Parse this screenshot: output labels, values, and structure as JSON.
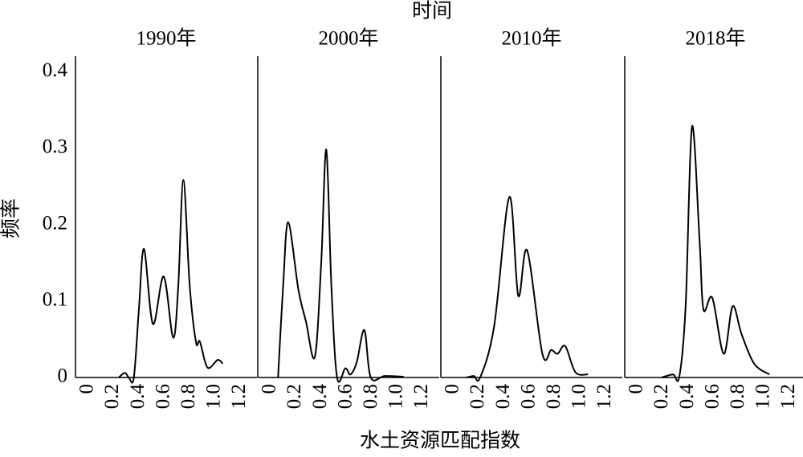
{
  "chart_data": {
    "type": "line",
    "facet_label": "时间",
    "ylabel": "频率",
    "xlabel": "水土资源匹配指数",
    "color": "#000000",
    "xlim": [
      -0.1,
      1.33
    ],
    "xticks": [
      0,
      0.2,
      0.4,
      0.6,
      0.8,
      {
        "value": 1,
        "label": "1.0"
      },
      1.2
    ],
    "ylim": [
      0,
      0.42
    ],
    "yticks": [
      0,
      0.1,
      0.2,
      0.3,
      0.4
    ],
    "panels": [
      {
        "title": "1990年",
        "x": [
          0.24,
          0.29,
          0.32,
          0.36,
          0.4,
          0.44,
          0.51,
          0.595,
          0.67,
          0.71,
          0.75,
          0.8,
          0.85,
          0.88,
          0.94,
          1.02,
          1.06
        ],
        "values": [
          0,
          0.006,
          0,
          0,
          0.09,
          0.168,
          0.07,
          0.132,
          0.052,
          0.12,
          0.258,
          0.12,
          0.046,
          0.047,
          0.013,
          0.023,
          0.018
        ]
      },
      {
        "title": "2000年",
        "x": [
          0.06,
          0.1,
          0.14,
          0.22,
          0.28,
          0.35,
          0.4,
          0.44,
          0.48,
          0.525,
          0.59,
          0.63,
          0.68,
          0.74,
          0.79,
          0.9,
          1.05
        ],
        "values": [
          0,
          0.12,
          0.203,
          0.115,
          0.073,
          0.027,
          0.15,
          0.298,
          0.12,
          0,
          0.012,
          0.004,
          0.02,
          0.062,
          0,
          0.002,
          0.001
        ]
      },
      {
        "title": "2010年",
        "x": [
          0.1,
          0.16,
          0.21,
          0.32,
          0.44,
          0.51,
          0.58,
          0.7,
          0.77,
          0.82,
          0.88,
          0.96,
          1.06
        ],
        "values": [
          0,
          0.002,
          0,
          0.067,
          0.236,
          0.107,
          0.166,
          0.031,
          0.036,
          0.031,
          0.041,
          0.007,
          0.004
        ]
      },
      {
        "title": "2018年",
        "x": [
          0.19,
          0.28,
          0.33,
          0.38,
          0.43,
          0.49,
          0.52,
          0.59,
          0.68,
          0.75,
          0.82,
          0.92,
          1.04
        ],
        "values": [
          0,
          0.004,
          0.001,
          0.094,
          0.328,
          0.178,
          0.089,
          0.104,
          0.031,
          0.093,
          0.057,
          0.018,
          0.004
        ]
      }
    ]
  }
}
